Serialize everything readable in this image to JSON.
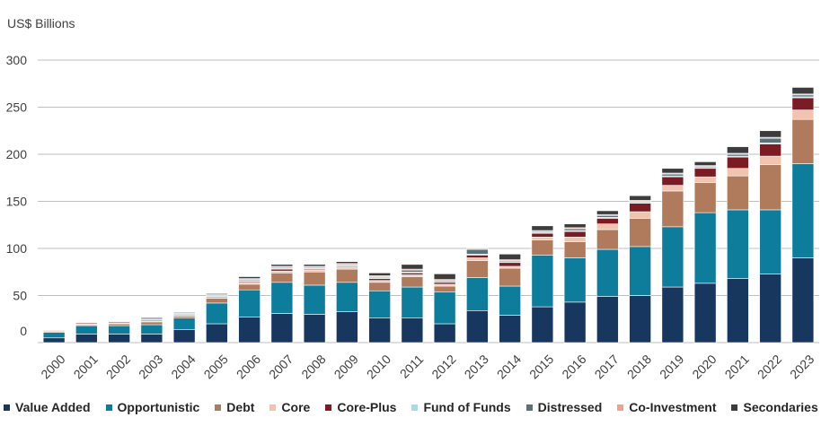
{
  "chart_data": {
    "type": "bar",
    "stacked": true,
    "unit_label": "US$ Billions",
    "ylim": [
      0,
      300
    ],
    "yticks": [
      0,
      50,
      100,
      150,
      200,
      250,
      300
    ],
    "categories": [
      "2000",
      "2001",
      "2002",
      "2003",
      "2004",
      "2005",
      "2006",
      "2007",
      "2008",
      "2009",
      "2010",
      "2011",
      "2012",
      "2013",
      "2014",
      "2015",
      "2016",
      "2017",
      "2018",
      "2019",
      "2020",
      "2021",
      "2022",
      "2023"
    ],
    "series": [
      {
        "name": "Value Added",
        "color": "#17375e",
        "values": [
          5,
          9,
          9,
          9,
          14,
          20,
          27,
          31,
          30,
          33,
          26,
          26,
          20,
          34,
          29,
          38,
          43,
          49,
          50,
          59,
          63,
          68,
          73,
          90
        ]
      },
      {
        "name": "Opportunistic",
        "color": "#0e7d9c",
        "values": [
          6,
          9,
          9,
          10,
          12,
          22,
          29,
          33,
          31,
          31,
          29,
          33,
          34,
          35,
          31,
          55,
          47,
          50,
          52,
          64,
          75,
          73,
          68,
          100
        ]
      },
      {
        "name": "Debt",
        "color": "#b07b5c",
        "values": [
          1,
          1,
          2,
          3,
          2,
          5,
          6,
          10,
          14,
          14,
          9,
          11,
          6,
          18,
          19,
          16,
          17,
          21,
          30,
          38,
          32,
          36,
          48,
          47
        ]
      },
      {
        "name": "Core",
        "color": "#f2c4b0",
        "values": [
          1,
          1,
          1,
          1,
          1,
          1,
          2,
          2,
          2,
          2,
          2,
          2,
          2,
          3,
          2,
          3,
          5,
          6,
          7,
          6,
          6,
          8,
          9,
          10
        ]
      },
      {
        "name": "Core-Plus",
        "color": "#7b1c24",
        "values": [
          0,
          1,
          1,
          1,
          1,
          1,
          1,
          2,
          1,
          1,
          2,
          2,
          2,
          3,
          4,
          4,
          6,
          6,
          9,
          9,
          9,
          12,
          13,
          13
        ]
      },
      {
        "name": "Fund of Funds",
        "color": "#a6dce4",
        "values": [
          0,
          0,
          0,
          1,
          1,
          1,
          1,
          1,
          1,
          1,
          1,
          1,
          1,
          1,
          1,
          1,
          1,
          1,
          1,
          1,
          1,
          1,
          1,
          1
        ]
      },
      {
        "name": "Distressed",
        "color": "#5a7178",
        "values": [
          0,
          0,
          0,
          1,
          1,
          1,
          1,
          1,
          1,
          1,
          1,
          2,
          1,
          5,
          1,
          1,
          2,
          2,
          1,
          2,
          1,
          2,
          5,
          2
        ]
      },
      {
        "name": "Co-Investment",
        "color": "#f4a08b",
        "values": [
          0,
          0,
          0,
          0,
          0,
          0,
          1,
          1,
          1,
          1,
          1,
          1,
          1,
          1,
          1,
          1,
          1,
          1,
          1,
          1,
          1,
          1,
          1,
          1
        ]
      },
      {
        "name": "Secondaries",
        "color": "#3c3c3c",
        "values": [
          0,
          0,
          0,
          1,
          0,
          1,
          2,
          2,
          2,
          2,
          3,
          5,
          6,
          0,
          6,
          5,
          4,
          4,
          5,
          5,
          4,
          7,
          7,
          7
        ]
      }
    ]
  }
}
